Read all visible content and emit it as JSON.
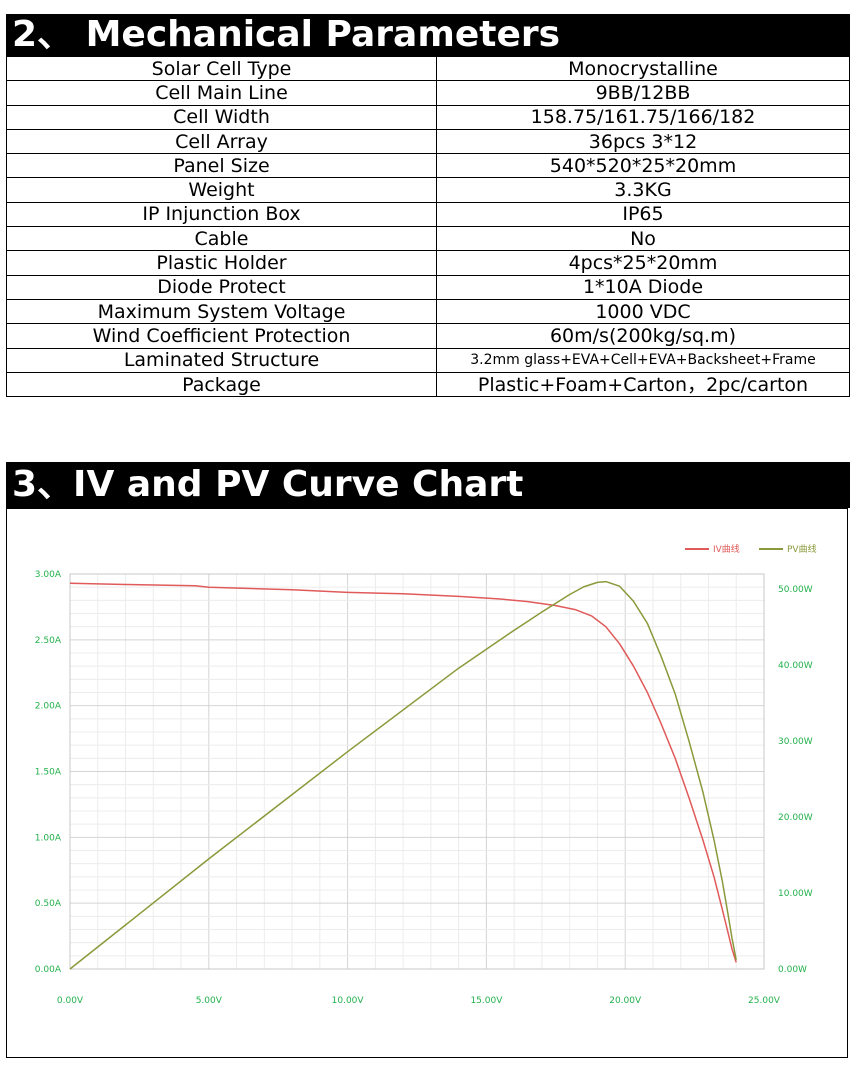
{
  "section1": {
    "title": "2、 Mechanical Parameters"
  },
  "params": [
    {
      "key": "Solar Cell Type",
      "value": "Monocrystalline"
    },
    {
      "key": "Cell Main Line",
      "value": "9BB/12BB"
    },
    {
      "key": "Cell Width",
      "value": "158.75/161.75/166/182"
    },
    {
      "key": "Cell Array",
      "value": "36pcs 3*12"
    },
    {
      "key": "Panel Size",
      "value": "540*520*25*20mm"
    },
    {
      "key": "Weight",
      "value": "3.3KG"
    },
    {
      "key": "IP Injunction Box",
      "value": "IP65"
    },
    {
      "key": "Cable",
      "value": "No"
    },
    {
      "key": "Plastic Holder",
      "value": "4pcs*25*20mm"
    },
    {
      "key": "Diode Protect",
      "value": "1*10A Diode"
    },
    {
      "key": "Maximum System Voltage",
      "value": "1000 VDC"
    },
    {
      "key": "Wind Coefficient Protection",
      "value": "60m/s(200kg/sq.m)"
    },
    {
      "key": "Laminated Structure",
      "value": "3.2mm glass+EVA+Cell+EVA+Backsheet+Frame"
    },
    {
      "key": "Package",
      "value": "Plastic+Foam+Carton，2pc/carton"
    }
  ],
  "section2": {
    "title": "3、IV and PV Curve Chart"
  },
  "chart_data": {
    "type": "line",
    "title": "",
    "xlabel": "",
    "ylabel": "",
    "xlim": [
      0,
      25
    ],
    "ylim_left": [
      0,
      3.0
    ],
    "ylim_right": [
      0,
      52
    ],
    "grid": true,
    "legend_position": "top-right",
    "x_ticks": [
      "0.00V",
      "5.00V",
      "10.00V",
      "15.00V",
      "20.00V",
      "25.00V"
    ],
    "y_ticks_left": [
      "0.00A",
      "0.50A",
      "1.00A",
      "1.50A",
      "2.00A",
      "2.50A",
      "3.00A"
    ],
    "y_ticks_right": [
      "0.00W",
      "10.00W",
      "20.00W",
      "30.00W",
      "40.00W",
      "50.00W"
    ],
    "series": [
      {
        "name": "IV曲线",
        "axis": "left",
        "color": "#e05a5a",
        "points": [
          [
            0,
            2.93
          ],
          [
            2,
            2.92
          ],
          [
            4.5,
            2.91
          ],
          [
            5,
            2.9
          ],
          [
            8,
            2.88
          ],
          [
            10,
            2.86
          ],
          [
            12,
            2.85
          ],
          [
            14,
            2.83
          ],
          [
            15.5,
            2.81
          ],
          [
            16.5,
            2.79
          ],
          [
            17.5,
            2.76
          ],
          [
            18.2,
            2.73
          ],
          [
            18.8,
            2.68
          ],
          [
            19.3,
            2.6
          ],
          [
            19.8,
            2.47
          ],
          [
            20.3,
            2.3
          ],
          [
            20.8,
            2.1
          ],
          [
            21.3,
            1.86
          ],
          [
            21.8,
            1.6
          ],
          [
            22.3,
            1.3
          ],
          [
            22.8,
            0.98
          ],
          [
            23.2,
            0.7
          ],
          [
            23.5,
            0.45
          ],
          [
            23.7,
            0.28
          ],
          [
            23.85,
            0.15
          ],
          [
            24.0,
            0.05
          ]
        ]
      },
      {
        "name": "PV曲线",
        "axis": "right",
        "color": "#8a9a3a",
        "points": [
          [
            0,
            0
          ],
          [
            5,
            14.5
          ],
          [
            10,
            28.6
          ],
          [
            14,
            39.6
          ],
          [
            16,
            44.6
          ],
          [
            17,
            47.0
          ],
          [
            18,
            49.3
          ],
          [
            18.5,
            50.3
          ],
          [
            19,
            50.9
          ],
          [
            19.3,
            51.0
          ],
          [
            19.8,
            50.4
          ],
          [
            20.3,
            48.4
          ],
          [
            20.8,
            45.5
          ],
          [
            21.3,
            41.1
          ],
          [
            21.8,
            36.2
          ],
          [
            22.3,
            30.0
          ],
          [
            22.8,
            23.3
          ],
          [
            23.2,
            17.0
          ],
          [
            23.5,
            11.5
          ],
          [
            23.7,
            7.3
          ],
          [
            23.85,
            4.0
          ],
          [
            24.0,
            1.2
          ]
        ]
      }
    ]
  }
}
